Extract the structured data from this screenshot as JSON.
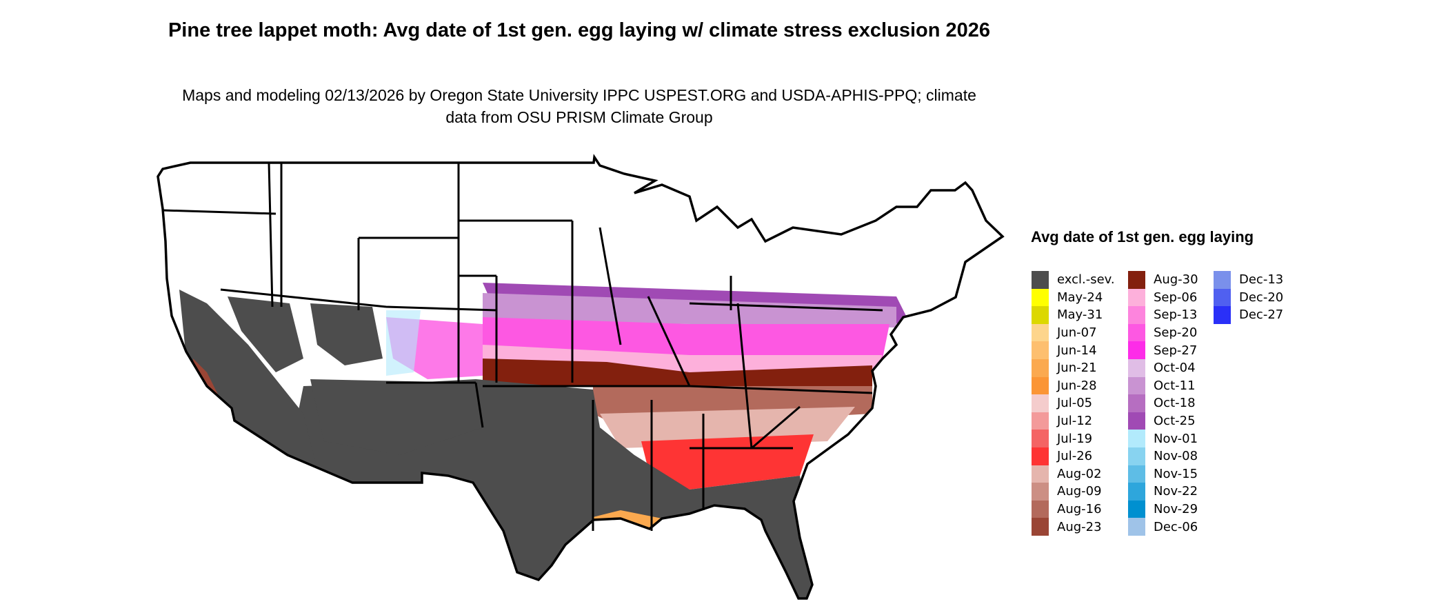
{
  "chart_data": {
    "type": "heatmap",
    "map": "contiguous United States",
    "title": "Pine tree lappet moth: Avg date of 1st gen. egg laying w/ climate stress exclusion 2026",
    "subtitle": "Maps and modeling 02/13/2026 by Oregon State University IPPC USPEST.ORG and USDA-APHIS-PPQ; climate data from OSU PRISM Climate Group",
    "legend": {
      "title": "Avg date of 1st gen. egg laying",
      "placement": "right",
      "items": [
        {
          "label": "excl.-sev.",
          "color": "#4d4d4d"
        },
        {
          "label": "May-24",
          "color": "#ffff00"
        },
        {
          "label": "May-31",
          "color": "#dcd800"
        },
        {
          "label": "Jun-07",
          "color": "#fdd58c"
        },
        {
          "label": "Jun-14",
          "color": "#fdbf6f"
        },
        {
          "label": "Jun-21",
          "color": "#fba94f"
        },
        {
          "label": "Jun-28",
          "color": "#fb9535"
        },
        {
          "label": "Jul-05",
          "color": "#f4cccc"
        },
        {
          "label": "Jul-12",
          "color": "#f39a9a"
        },
        {
          "label": "Jul-19",
          "color": "#f46464"
        },
        {
          "label": "Jul-26",
          "color": "#fe3434"
        },
        {
          "label": "Aug-02",
          "color": "#e5b5ad"
        },
        {
          "label": "Aug-09",
          "color": "#cc8f84"
        },
        {
          "label": "Aug-16",
          "color": "#b36a5c"
        },
        {
          "label": "Aug-23",
          "color": "#9a4535"
        },
        {
          "label": "Aug-30",
          "color": "#83200e"
        },
        {
          "label": "Sep-06",
          "color": "#fdb0db"
        },
        {
          "label": "Sep-13",
          "color": "#fd84dd"
        },
        {
          "label": "Sep-20",
          "color": "#fd58e2"
        },
        {
          "label": "Sep-27",
          "color": "#fd2ce8"
        },
        {
          "label": "Oct-04",
          "color": "#e0bde6"
        },
        {
          "label": "Oct-11",
          "color": "#c993d2"
        },
        {
          "label": "Oct-18",
          "color": "#b66ec1"
        },
        {
          "label": "Oct-25",
          "color": "#a04ab4"
        },
        {
          "label": "Nov-01",
          "color": "#b2eafc"
        },
        {
          "label": "Nov-08",
          "color": "#88d3f0"
        },
        {
          "label": "Nov-15",
          "color": "#5ebde6"
        },
        {
          "label": "Nov-22",
          "color": "#2ea6dc"
        },
        {
          "label": "Nov-29",
          "color": "#0090d0"
        },
        {
          "label": "Dec-06",
          "color": "#9fc3e8"
        },
        {
          "label": "Dec-13",
          "color": "#7a90eb"
        },
        {
          "label": "Dec-20",
          "color": "#5060f0"
        },
        {
          "label": "Dec-27",
          "color": "#2a30f8"
        }
      ]
    },
    "no_data_color": "#ffffff",
    "boundary_color": "#000000"
  }
}
